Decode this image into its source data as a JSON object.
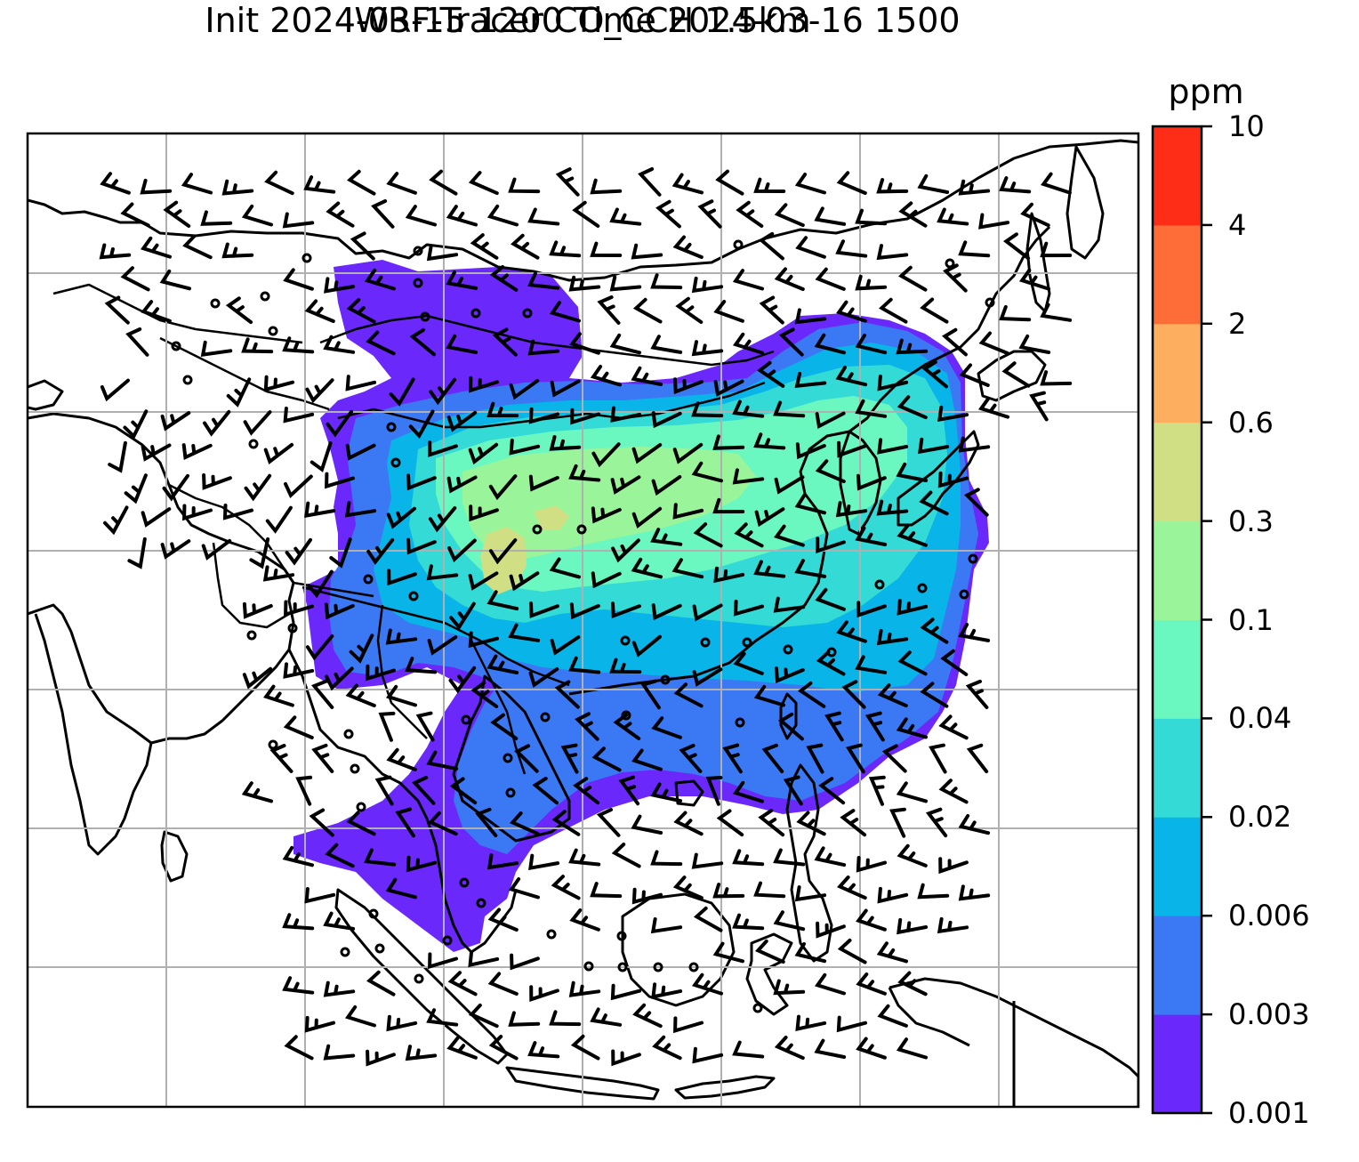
{
  "title": {
    "line1": "WRF-Tracer CO_CCH 1.5km",
    "line2": "Init 2024-03-15 1200 Time 2024-03-16 1500"
  },
  "colorbar": {
    "unit": "ppm",
    "ticks": [
      "0.001",
      "0.003",
      "0.006",
      "0.02",
      "0.04",
      "0.1",
      "0.3",
      "0.6",
      "2",
      "4",
      "10"
    ],
    "colors": [
      "#6a28fb",
      "#3b78f4",
      "#08b4e8",
      "#33dad6",
      "#6af7c0",
      "#9af59a",
      "#d0df84",
      "#fdae5e",
      "#fe6c38",
      "#fd2d17"
    ]
  },
  "chart_data": {
    "type": "heatmap",
    "variable": "CO_CCH",
    "level": "1.5km",
    "init": "2024-03-15 1200",
    "valid": "2024-03-16 1500",
    "unit": "ppm",
    "levels": [
      0.001,
      0.003,
      0.006,
      0.02,
      0.04,
      0.1,
      0.3,
      0.6,
      2,
      4,
      10
    ],
    "gridlines": true,
    "wind_barbs": true
  }
}
